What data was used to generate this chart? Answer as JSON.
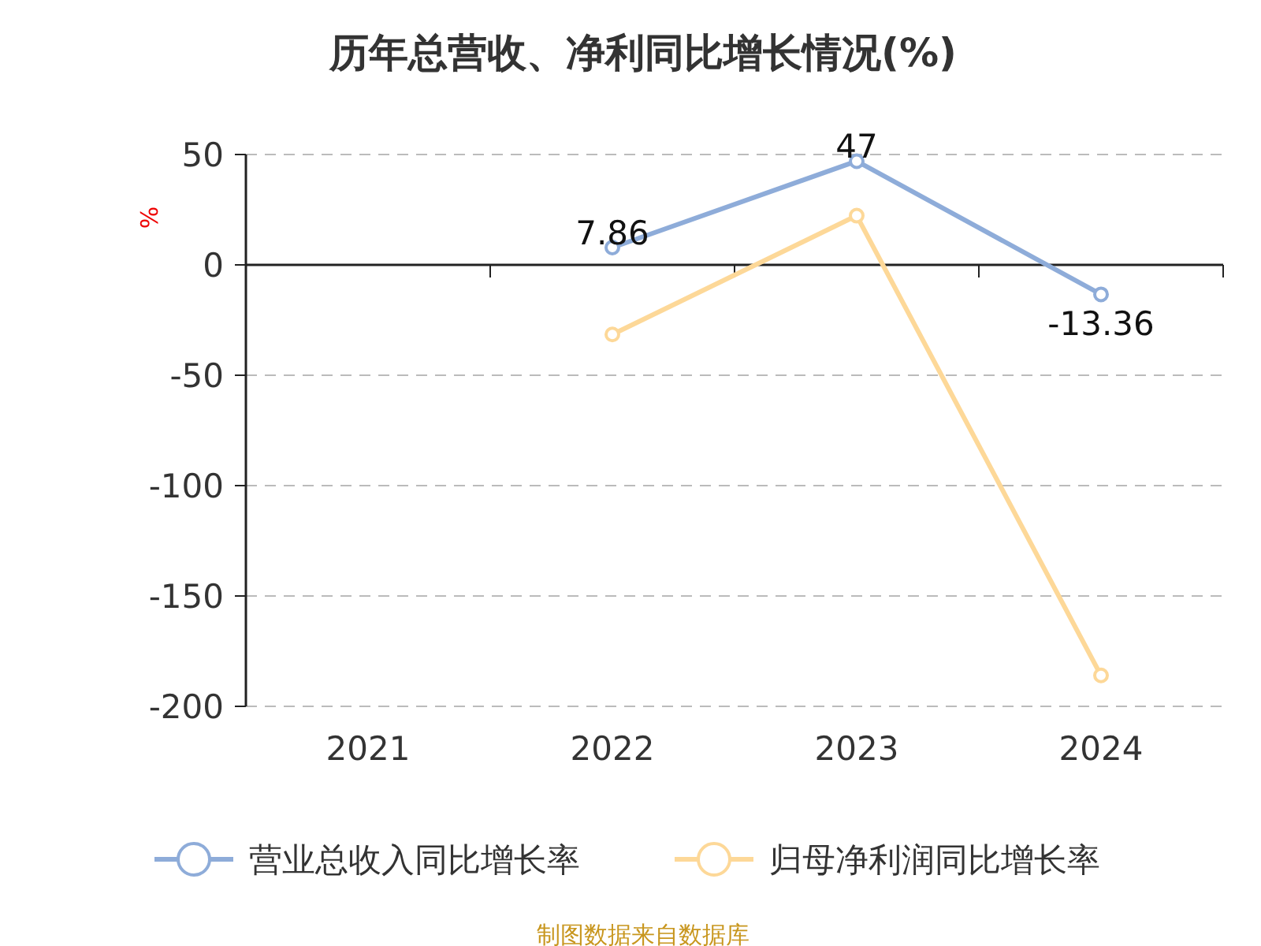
{
  "chart_data": {
    "type": "line",
    "title": "历年总营收、净利同比增长情况(%)",
    "ylabel": "%",
    "categories": [
      "2021",
      "2022",
      "2023",
      "2024"
    ],
    "series": [
      {
        "name": "营业总收入同比增长率",
        "color": "#8eacd9",
        "values": [
          null,
          7.86,
          47,
          -13.36
        ],
        "value_labels": [
          null,
          "7.86",
          "47",
          "-13.36"
        ]
      },
      {
        "name": "归母净利润同比增长率",
        "color": "#fdd898",
        "values": [
          null,
          -31.5,
          22.3,
          -186
        ]
      }
    ],
    "ylim": [
      -200,
      50
    ],
    "yticks": [
      -200,
      -150,
      -100,
      -50,
      0,
      50
    ],
    "grid": "y",
    "marker": "circle",
    "line_style": "solid",
    "legend": "bottom",
    "annotations": [
      "制图数据来自数据库"
    ]
  }
}
